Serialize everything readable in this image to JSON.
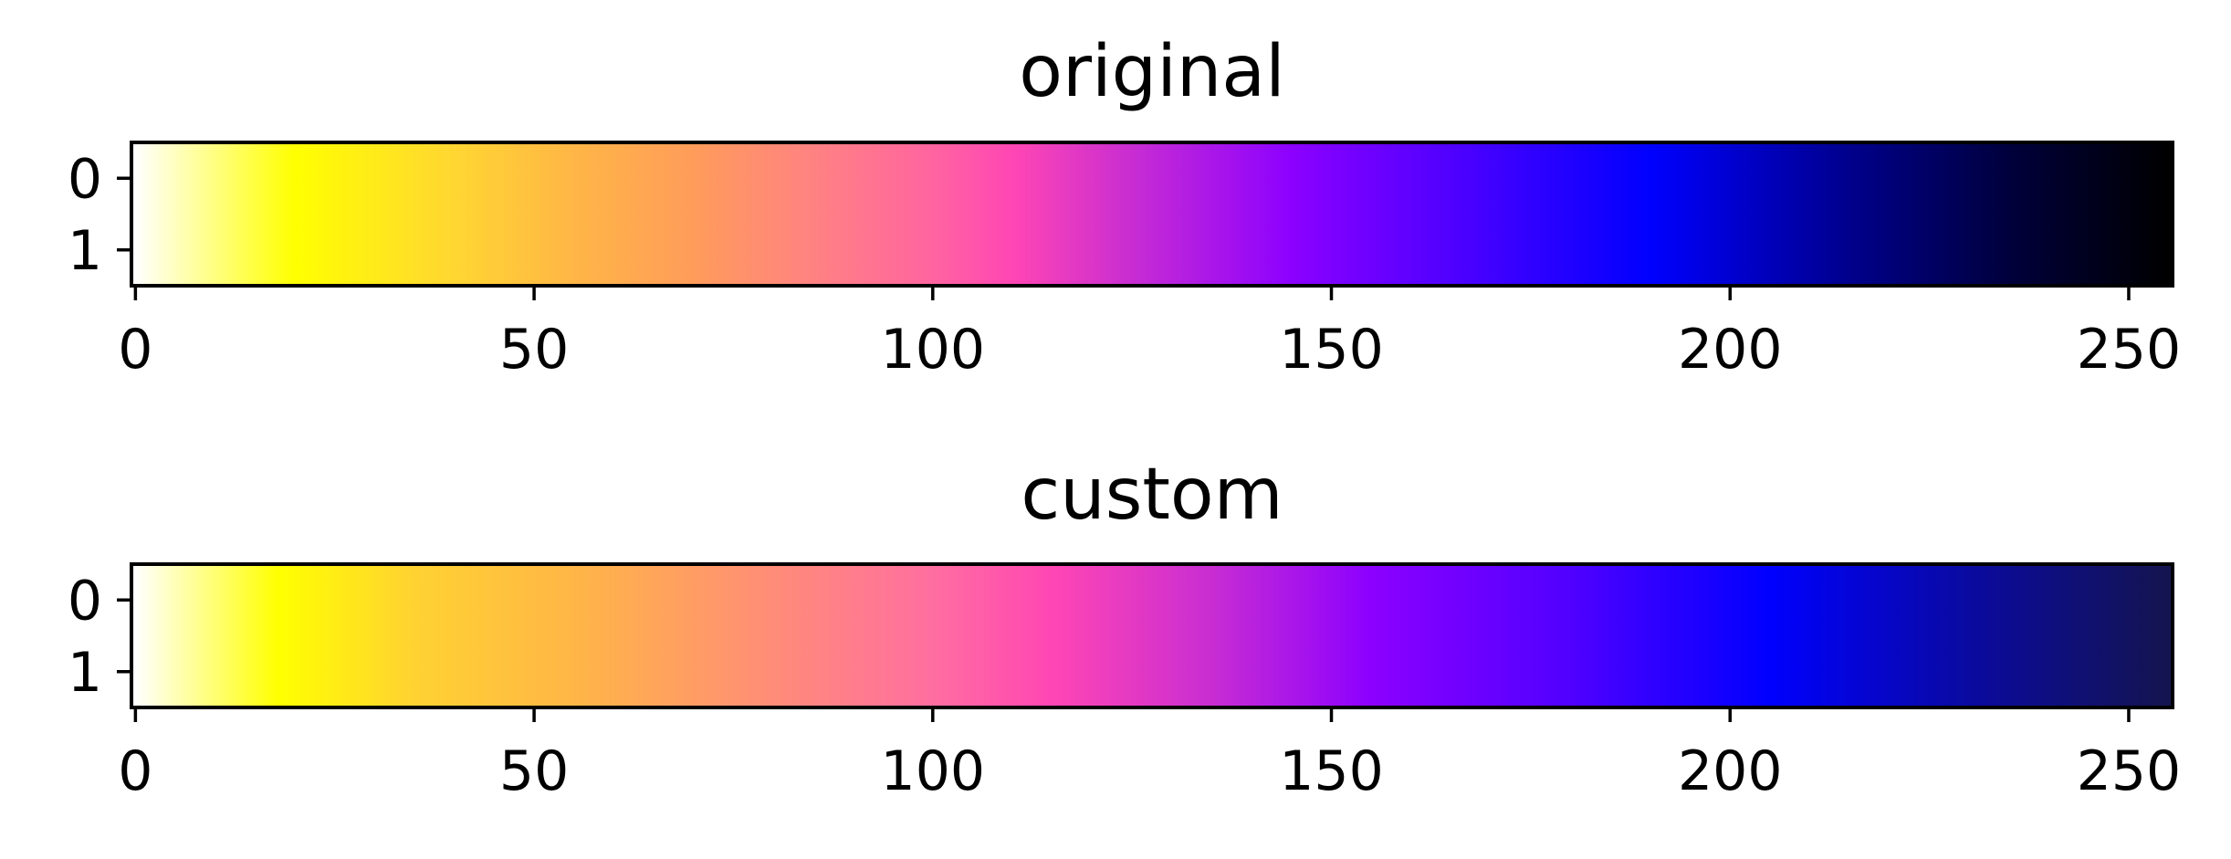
{
  "chart_data": [
    {
      "type": "heatmap",
      "title": "original",
      "xlabel": "",
      "ylabel": "",
      "xlim": [
        -0.5,
        255.5
      ],
      "ylim": [
        1.5,
        -0.5
      ],
      "xticks": [
        0,
        50,
        100,
        150,
        200,
        250
      ],
      "yticks": [
        0,
        1
      ],
      "grid": false,
      "colormap": "gnuplot2_r",
      "color_stops": [
        {
          "x": 0,
          "color": "#ffffff"
        },
        {
          "x": 20,
          "color": "#ffff00"
        },
        {
          "x": 40,
          "color": "#ffd632"
        },
        {
          "x": 55,
          "color": "#ffb646"
        },
        {
          "x": 70,
          "color": "#ff9c5a"
        },
        {
          "x": 85,
          "color": "#ff8282"
        },
        {
          "x": 100,
          "color": "#ff64a0"
        },
        {
          "x": 110,
          "color": "#ff46b4"
        },
        {
          "x": 125,
          "color": "#c82dd2"
        },
        {
          "x": 145,
          "color": "#8c00ff"
        },
        {
          "x": 165,
          "color": "#5000ff"
        },
        {
          "x": 190,
          "color": "#0000ff"
        },
        {
          "x": 215,
          "color": "#00008c"
        },
        {
          "x": 235,
          "color": "#00003c"
        },
        {
          "x": 255,
          "color": "#000000"
        }
      ]
    },
    {
      "type": "heatmap",
      "title": "custom",
      "xlabel": "",
      "ylabel": "",
      "xlim": [
        -0.5,
        255.5
      ],
      "ylim": [
        1.5,
        -0.5
      ],
      "xticks": [
        0,
        50,
        100,
        150,
        200,
        250
      ],
      "yticks": [
        0,
        1
      ],
      "grid": false,
      "color_stops": [
        {
          "x": 0,
          "color": "#ffffff"
        },
        {
          "x": 18,
          "color": "#ffff00"
        },
        {
          "x": 35,
          "color": "#ffd232"
        },
        {
          "x": 55,
          "color": "#ffb646"
        },
        {
          "x": 80,
          "color": "#ff8c78"
        },
        {
          "x": 100,
          "color": "#ff6ea0"
        },
        {
          "x": 115,
          "color": "#ff46b4"
        },
        {
          "x": 135,
          "color": "#c82dd2"
        },
        {
          "x": 155,
          "color": "#8c00ff"
        },
        {
          "x": 180,
          "color": "#5000ff"
        },
        {
          "x": 205,
          "color": "#0000ff"
        },
        {
          "x": 230,
          "color": "#0a0aa0"
        },
        {
          "x": 255,
          "color": "#141450"
        }
      ]
    }
  ]
}
